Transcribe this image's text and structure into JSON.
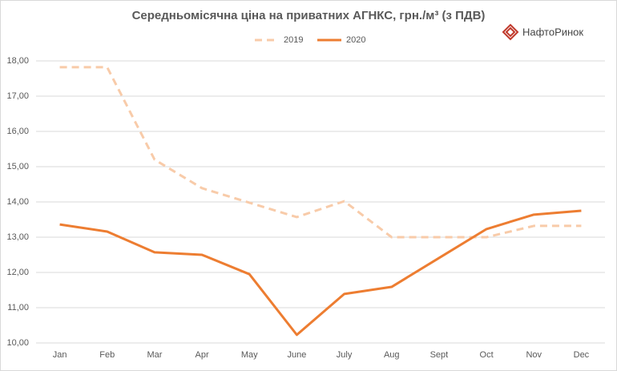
{
  "chart_data": {
    "type": "line",
    "title": "Середньомісячна ціна на приватних АГНКС, грн./м³  (з ПДВ)",
    "logo": "НафтоРинок",
    "categories": [
      "Jan",
      "Feb",
      "Mar",
      "Apr",
      "May",
      "June",
      "July",
      "Aug",
      "Sept",
      "Oct",
      "Nov",
      "Dec"
    ],
    "series": [
      {
        "name": "2019",
        "color": "#f8cba9",
        "dashed": true,
        "values": [
          17.82,
          17.82,
          15.2,
          14.39,
          13.98,
          13.57,
          14.02,
          13.0,
          13.0,
          13.0,
          13.32,
          13.32
        ]
      },
      {
        "name": "2020",
        "color": "#ed7d31",
        "dashed": false,
        "values": [
          13.36,
          13.16,
          12.57,
          12.5,
          11.95,
          10.23,
          11.39,
          11.59,
          12.41,
          13.23,
          13.64,
          13.75
        ]
      }
    ],
    "ylim": [
      10,
      18
    ],
    "yticks": [
      {
        "value": 10,
        "label": "10,00"
      },
      {
        "value": 11,
        "label": "11,00"
      },
      {
        "value": 12,
        "label": "12,00"
      },
      {
        "value": 13,
        "label": "13,00"
      },
      {
        "value": 14,
        "label": "14,00"
      },
      {
        "value": 15,
        "label": "15,00"
      },
      {
        "value": 16,
        "label": "16,00"
      },
      {
        "value": 17,
        "label": "17,00"
      },
      {
        "value": 18,
        "label": "18,00"
      }
    ],
    "grid": true,
    "legend": "top"
  }
}
